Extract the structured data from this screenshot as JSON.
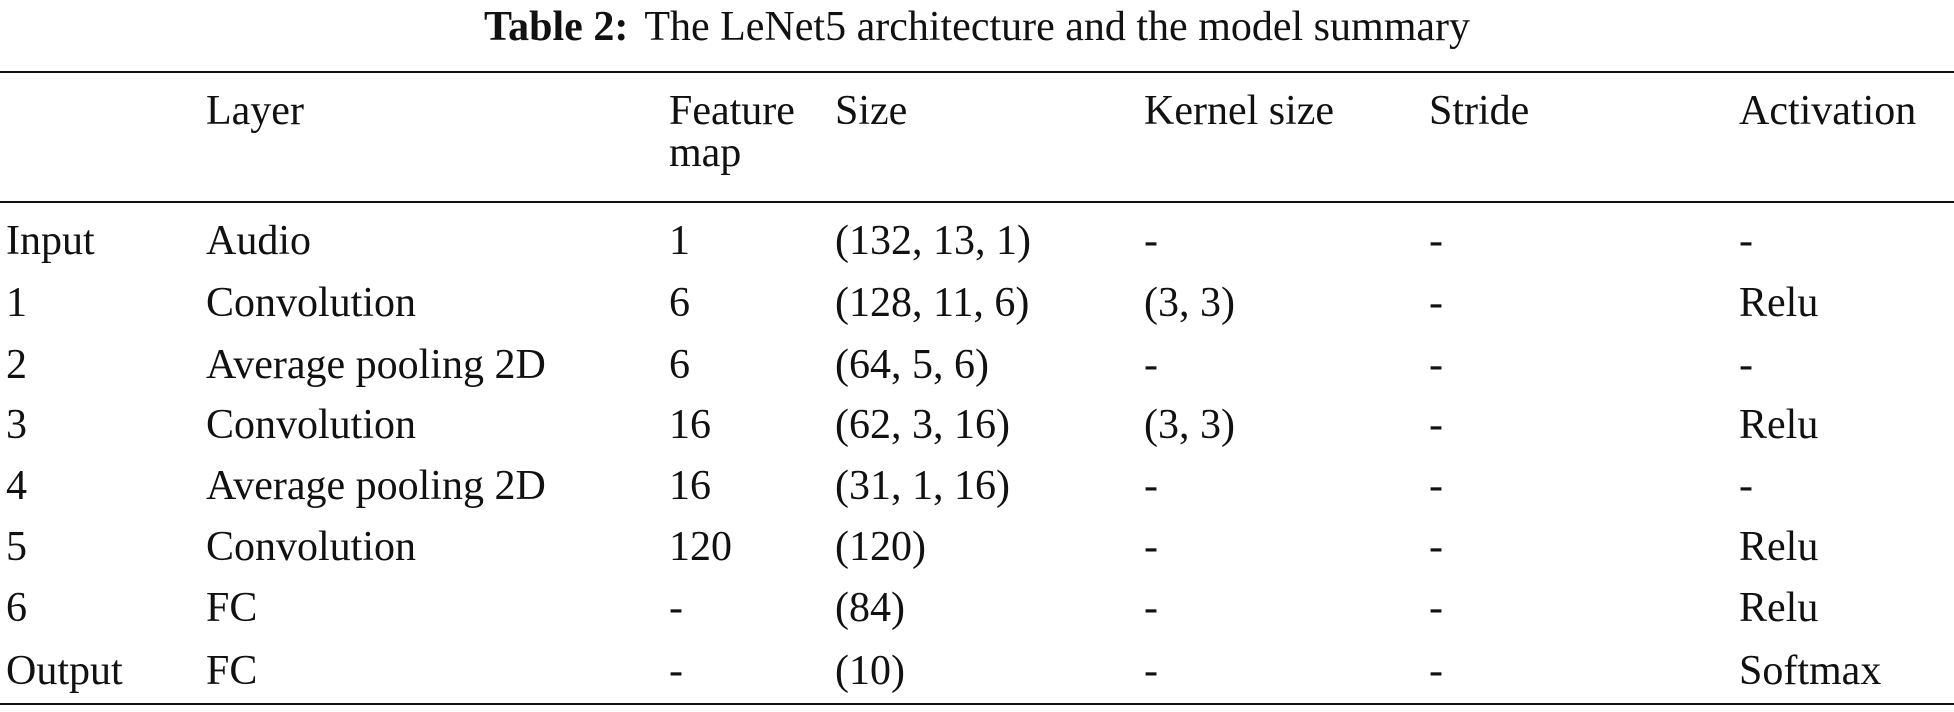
{
  "title": {
    "label": "Table 2:",
    "text": "The LeNet5 architecture and the model summary"
  },
  "table": {
    "header": [
      "",
      "Layer",
      "Feature map",
      "Size",
      "Kernel size",
      "Stride",
      "Activation"
    ],
    "rows": [
      [
        "Input",
        "Audio",
        "1",
        "(132, 13, 1)",
        "-",
        "-",
        "-"
      ],
      [
        "1",
        "Convolution",
        "6",
        "(128, 11, 6)",
        "(3, 3)",
        "-",
        "Relu"
      ],
      [
        "2",
        "Average pooling 2D",
        "6",
        "(64, 5, 6)",
        "-",
        "-",
        "-"
      ],
      [
        "3",
        "Convolution",
        "16",
        "(62, 3, 16)",
        "(3, 3)",
        "-",
        "Relu"
      ],
      [
        "4",
        "Average pooling 2D",
        "16",
        "(31, 1, 16)",
        "-",
        "-",
        "-"
      ],
      [
        "5",
        "Convolution",
        "120",
        "(120)",
        "-",
        "-",
        "Relu"
      ],
      [
        "6",
        "FC",
        "-",
        "(84)",
        "-",
        "-",
        "Relu"
      ],
      [
        "Output",
        "FC",
        "-",
        "(10)",
        "-",
        "-",
        "Softmax"
      ]
    ]
  }
}
